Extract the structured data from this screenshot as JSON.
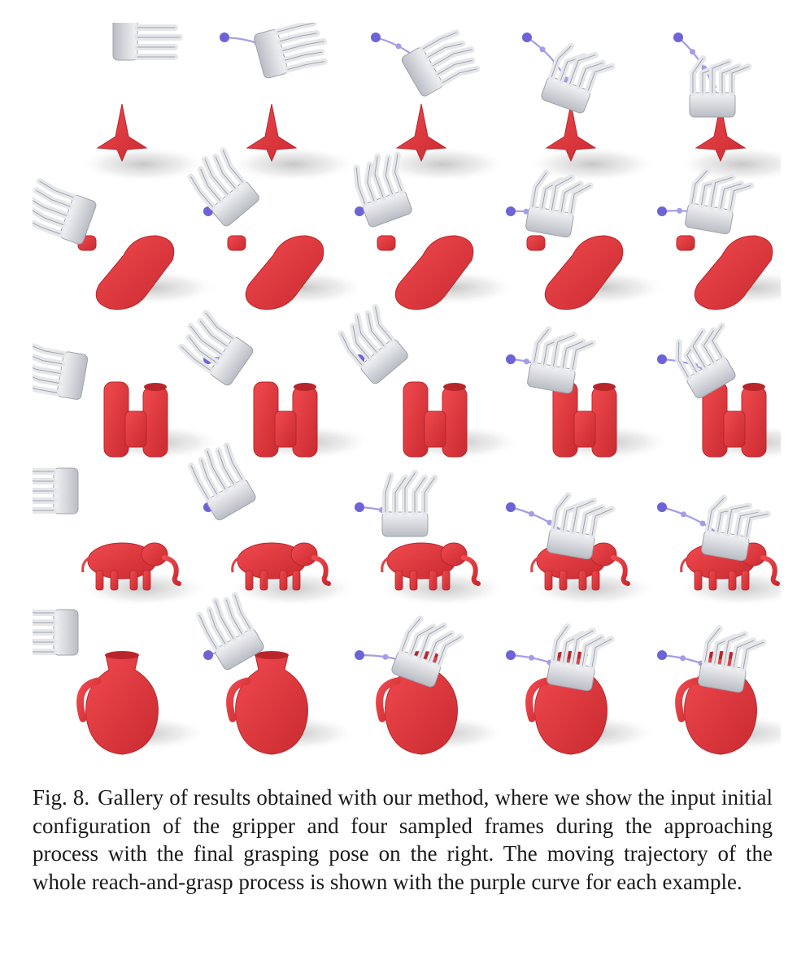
{
  "figure": {
    "rows": [
      {
        "object": "spinning-top",
        "frames": 5
      },
      {
        "object": "drill",
        "frames": 5
      },
      {
        "object": "binoculars",
        "frames": 5
      },
      {
        "object": "elephant",
        "frames": 5
      },
      {
        "object": "vase",
        "frames": 5
      }
    ],
    "colors": {
      "object": "#e0393e",
      "object_shade": "#b8262c",
      "hand": "#e6e7ea",
      "hand_shade": "#9ea3ab",
      "trajectory": "#a49ce6",
      "trajectory_dot": "#6d62d6",
      "shadow": "#c8c8c8"
    }
  },
  "caption": {
    "label": "Fig. 8.",
    "text": "Gallery of results obtained with our method, where we show the input initial configuration of the gripper and four sampled frames during the approaching process with the final grasping pose on the right. The moving trajectory of the whole reach-and-grasp process is shown with the purple curve for each example."
  }
}
